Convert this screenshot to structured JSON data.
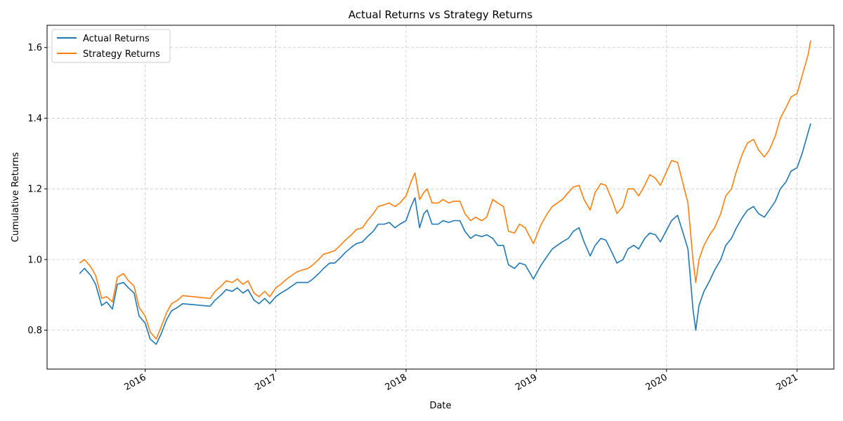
{
  "chart_data": {
    "type": "line",
    "title": "Actual Returns vs Strategy Returns",
    "xlabel": "Date",
    "ylabel": "Cumulative Returns",
    "xlim": [
      "2015-04-01",
      "2021-04-14"
    ],
    "ylim": [
      0.69,
      1.663
    ],
    "x_ticks": [
      {
        "date": "2016-01-01",
        "label": "2016"
      },
      {
        "date": "2017-01-01",
        "label": "2017"
      },
      {
        "date": "2018-01-01",
        "label": "2018"
      },
      {
        "date": "2019-01-01",
        "label": "2019"
      },
      {
        "date": "2020-01-01",
        "label": "2020"
      },
      {
        "date": "2021-01-01",
        "label": "2021"
      }
    ],
    "y_ticks": [
      {
        "value": 0.8,
        "label": "0.8"
      },
      {
        "value": 1.0,
        "label": "1.0"
      },
      {
        "value": 1.2,
        "label": "1.2"
      },
      {
        "value": 1.4,
        "label": "1.4"
      },
      {
        "value": 1.6,
        "label": "1.6"
      }
    ],
    "grid": true,
    "legend_position": "top-left",
    "series": [
      {
        "name": "Actual Returns",
        "color": "#1f77b4",
        "points": [
          [
            "2015-07-01",
            0.96
          ],
          [
            "2015-07-15",
            0.975
          ],
          [
            "2015-08-01",
            0.955
          ],
          [
            "2015-08-15",
            0.93
          ],
          [
            "2015-09-01",
            0.87
          ],
          [
            "2015-09-15",
            0.88
          ],
          [
            "2015-10-01",
            0.86
          ],
          [
            "2015-10-15",
            0.93
          ],
          [
            "2015-11-01",
            0.935
          ],
          [
            "2015-11-15",
            0.92
          ],
          [
            "2015-12-01",
            0.905
          ],
          [
            "2015-12-15",
            0.84
          ],
          [
            "2016-01-01",
            0.82
          ],
          [
            "2016-01-15",
            0.775
          ],
          [
            "2016-02-01",
            0.76
          ],
          [
            "2016-02-15",
            0.79
          ],
          [
            "2016-03-01",
            0.83
          ],
          [
            "2016-03-15",
            0.855
          ],
          [
            "2016-04-01",
            0.865
          ],
          [
            "2016-04-15",
            0.875
          ],
          [
            "2016-07-01",
            0.868
          ],
          [
            "2016-07-15",
            0.885
          ],
          [
            "2016-08-01",
            0.9
          ],
          [
            "2016-08-15",
            0.915
          ],
          [
            "2016-09-01",
            0.91
          ],
          [
            "2016-09-15",
            0.92
          ],
          [
            "2016-10-01",
            0.905
          ],
          [
            "2016-10-15",
            0.915
          ],
          [
            "2016-11-01",
            0.885
          ],
          [
            "2016-11-15",
            0.875
          ],
          [
            "2016-12-01",
            0.89
          ],
          [
            "2016-12-15",
            0.875
          ],
          [
            "2017-01-01",
            0.895
          ],
          [
            "2017-01-15",
            0.905
          ],
          [
            "2017-02-01",
            0.915
          ],
          [
            "2017-02-15",
            0.925
          ],
          [
            "2017-03-01",
            0.935
          ],
          [
            "2017-03-15",
            0.935
          ],
          [
            "2017-04-01",
            0.935
          ],
          [
            "2017-04-15",
            0.945
          ],
          [
            "2017-05-01",
            0.96
          ],
          [
            "2017-05-15",
            0.975
          ],
          [
            "2017-06-01",
            0.99
          ],
          [
            "2017-06-15",
            0.99
          ],
          [
            "2017-07-01",
            1.005
          ],
          [
            "2017-07-15",
            1.02
          ],
          [
            "2017-08-01",
            1.035
          ],
          [
            "2017-08-15",
            1.045
          ],
          [
            "2017-09-01",
            1.05
          ],
          [
            "2017-09-15",
            1.065
          ],
          [
            "2017-10-01",
            1.08
          ],
          [
            "2017-10-15",
            1.1
          ],
          [
            "2017-11-01",
            1.1
          ],
          [
            "2017-11-15",
            1.105
          ],
          [
            "2017-12-01",
            1.09
          ],
          [
            "2017-12-15",
            1.1
          ],
          [
            "2018-01-01",
            1.11
          ],
          [
            "2018-01-15",
            1.15
          ],
          [
            "2018-01-26",
            1.175
          ],
          [
            "2018-02-08",
            1.09
          ],
          [
            "2018-02-20",
            1.13
          ],
          [
            "2018-03-01",
            1.14
          ],
          [
            "2018-03-15",
            1.1
          ],
          [
            "2018-04-01",
            1.1
          ],
          [
            "2018-04-15",
            1.11
          ],
          [
            "2018-05-01",
            1.105
          ],
          [
            "2018-05-15",
            1.11
          ],
          [
            "2018-06-01",
            1.11
          ],
          [
            "2018-06-15",
            1.08
          ],
          [
            "2018-07-01",
            1.06
          ],
          [
            "2018-07-15",
            1.07
          ],
          [
            "2018-08-01",
            1.065
          ],
          [
            "2018-08-15",
            1.07
          ],
          [
            "2018-09-01",
            1.06
          ],
          [
            "2018-09-15",
            1.04
          ],
          [
            "2018-10-01",
            1.04
          ],
          [
            "2018-10-15",
            0.985
          ],
          [
            "2018-11-01",
            0.975
          ],
          [
            "2018-11-15",
            0.99
          ],
          [
            "2018-12-01",
            0.985
          ],
          [
            "2018-12-24",
            0.945
          ],
          [
            "2019-01-15",
            0.985
          ],
          [
            "2019-02-01",
            1.01
          ],
          [
            "2019-02-15",
            1.03
          ],
          [
            "2019-03-01",
            1.04
          ],
          [
            "2019-03-15",
            1.05
          ],
          [
            "2019-04-01",
            1.06
          ],
          [
            "2019-04-15",
            1.08
          ],
          [
            "2019-05-01",
            1.09
          ],
          [
            "2019-05-15",
            1.05
          ],
          [
            "2019-06-01",
            1.01
          ],
          [
            "2019-06-15",
            1.04
          ],
          [
            "2019-07-01",
            1.06
          ],
          [
            "2019-07-15",
            1.055
          ],
          [
            "2019-08-01",
            1.02
          ],
          [
            "2019-08-15",
            0.99
          ],
          [
            "2019-09-01",
            1.0
          ],
          [
            "2019-09-15",
            1.03
          ],
          [
            "2019-10-01",
            1.04
          ],
          [
            "2019-10-15",
            1.03
          ],
          [
            "2019-11-01",
            1.06
          ],
          [
            "2019-11-15",
            1.075
          ],
          [
            "2019-12-01",
            1.07
          ],
          [
            "2019-12-15",
            1.05
          ],
          [
            "2020-01-15",
            1.11
          ],
          [
            "2020-02-01",
            1.125
          ],
          [
            "2020-02-15",
            1.08
          ],
          [
            "2020-03-01",
            1.03
          ],
          [
            "2020-03-15",
            0.86
          ],
          [
            "2020-03-23",
            0.8
          ],
          [
            "2020-04-01",
            0.87
          ],
          [
            "2020-04-15",
            0.91
          ],
          [
            "2020-05-01",
            0.94
          ],
          [
            "2020-05-15",
            0.97
          ],
          [
            "2020-06-01",
            1.0
          ],
          [
            "2020-06-15",
            1.04
          ],
          [
            "2020-07-01",
            1.06
          ],
          [
            "2020-07-15",
            1.09
          ],
          [
            "2020-08-01",
            1.12
          ],
          [
            "2020-08-15",
            1.14
          ],
          [
            "2020-09-01",
            1.15
          ],
          [
            "2020-09-15",
            1.13
          ],
          [
            "2020-10-01",
            1.12
          ],
          [
            "2020-10-15",
            1.14
          ],
          [
            "2020-11-01",
            1.165
          ],
          [
            "2020-11-15",
            1.2
          ],
          [
            "2020-12-01",
            1.22
          ],
          [
            "2020-12-15",
            1.25
          ],
          [
            "2021-01-01",
            1.26
          ],
          [
            "2021-01-15",
            1.3
          ],
          [
            "2021-02-01",
            1.36
          ],
          [
            "2021-02-08",
            1.385
          ]
        ]
      },
      {
        "name": "Strategy Returns",
        "color": "#ff7f0e",
        "points": [
          [
            "2015-07-01",
            0.99
          ],
          [
            "2015-07-15",
            1.0
          ],
          [
            "2015-08-01",
            0.98
          ],
          [
            "2015-08-15",
            0.955
          ],
          [
            "2015-09-01",
            0.89
          ],
          [
            "2015-09-15",
            0.895
          ],
          [
            "2015-10-01",
            0.88
          ],
          [
            "2015-10-15",
            0.95
          ],
          [
            "2015-11-01",
            0.96
          ],
          [
            "2015-11-15",
            0.94
          ],
          [
            "2015-12-01",
            0.925
          ],
          [
            "2015-12-15",
            0.865
          ],
          [
            "2016-01-01",
            0.84
          ],
          [
            "2016-01-15",
            0.795
          ],
          [
            "2016-02-01",
            0.775
          ],
          [
            "2016-02-15",
            0.81
          ],
          [
            "2016-03-01",
            0.85
          ],
          [
            "2016-03-15",
            0.875
          ],
          [
            "2016-04-01",
            0.885
          ],
          [
            "2016-04-15",
            0.898
          ],
          [
            "2016-07-01",
            0.89
          ],
          [
            "2016-07-15",
            0.91
          ],
          [
            "2016-08-01",
            0.925
          ],
          [
            "2016-08-15",
            0.94
          ],
          [
            "2016-09-01",
            0.935
          ],
          [
            "2016-09-15",
            0.945
          ],
          [
            "2016-10-01",
            0.93
          ],
          [
            "2016-10-15",
            0.94
          ],
          [
            "2016-11-01",
            0.905
          ],
          [
            "2016-11-15",
            0.895
          ],
          [
            "2016-12-01",
            0.91
          ],
          [
            "2016-12-15",
            0.895
          ],
          [
            "2017-01-01",
            0.92
          ],
          [
            "2017-01-15",
            0.93
          ],
          [
            "2017-02-01",
            0.945
          ],
          [
            "2017-02-15",
            0.955
          ],
          [
            "2017-03-01",
            0.965
          ],
          [
            "2017-03-15",
            0.97
          ],
          [
            "2017-04-01",
            0.975
          ],
          [
            "2017-04-15",
            0.985
          ],
          [
            "2017-05-01",
            1.0
          ],
          [
            "2017-05-15",
            1.015
          ],
          [
            "2017-06-01",
            1.02
          ],
          [
            "2017-06-15",
            1.025
          ],
          [
            "2017-07-01",
            1.04
          ],
          [
            "2017-07-15",
            1.055
          ],
          [
            "2017-08-01",
            1.07
          ],
          [
            "2017-08-15",
            1.085
          ],
          [
            "2017-09-01",
            1.09
          ],
          [
            "2017-09-15",
            1.11
          ],
          [
            "2017-10-01",
            1.13
          ],
          [
            "2017-10-15",
            1.15
          ],
          [
            "2017-11-01",
            1.155
          ],
          [
            "2017-11-15",
            1.16
          ],
          [
            "2017-12-01",
            1.15
          ],
          [
            "2017-12-15",
            1.16
          ],
          [
            "2018-01-01",
            1.18
          ],
          [
            "2018-01-15",
            1.22
          ],
          [
            "2018-01-26",
            1.245
          ],
          [
            "2018-02-08",
            1.17
          ],
          [
            "2018-02-20",
            1.19
          ],
          [
            "2018-03-01",
            1.2
          ],
          [
            "2018-03-15",
            1.16
          ],
          [
            "2018-04-01",
            1.16
          ],
          [
            "2018-04-15",
            1.17
          ],
          [
            "2018-05-01",
            1.16
          ],
          [
            "2018-05-15",
            1.165
          ],
          [
            "2018-06-01",
            1.165
          ],
          [
            "2018-06-15",
            1.13
          ],
          [
            "2018-07-01",
            1.11
          ],
          [
            "2018-07-15",
            1.12
          ],
          [
            "2018-08-01",
            1.11
          ],
          [
            "2018-08-15",
            1.12
          ],
          [
            "2018-09-01",
            1.17
          ],
          [
            "2018-09-15",
            1.16
          ],
          [
            "2018-10-01",
            1.15
          ],
          [
            "2018-10-15",
            1.08
          ],
          [
            "2018-11-01",
            1.075
          ],
          [
            "2018-11-15",
            1.1
          ],
          [
            "2018-12-01",
            1.09
          ],
          [
            "2018-12-24",
            1.045
          ],
          [
            "2019-01-15",
            1.1
          ],
          [
            "2019-02-01",
            1.13
          ],
          [
            "2019-02-15",
            1.15
          ],
          [
            "2019-03-01",
            1.16
          ],
          [
            "2019-03-15",
            1.17
          ],
          [
            "2019-04-01",
            1.19
          ],
          [
            "2019-04-15",
            1.205
          ],
          [
            "2019-05-01",
            1.21
          ],
          [
            "2019-05-15",
            1.17
          ],
          [
            "2019-06-01",
            1.14
          ],
          [
            "2019-06-15",
            1.19
          ],
          [
            "2019-07-01",
            1.215
          ],
          [
            "2019-07-15",
            1.21
          ],
          [
            "2019-08-01",
            1.17
          ],
          [
            "2019-08-15",
            1.13
          ],
          [
            "2019-09-01",
            1.15
          ],
          [
            "2019-09-15",
            1.2
          ],
          [
            "2019-10-01",
            1.2
          ],
          [
            "2019-10-15",
            1.18
          ],
          [
            "2019-11-01",
            1.21
          ],
          [
            "2019-11-15",
            1.24
          ],
          [
            "2019-12-01",
            1.23
          ],
          [
            "2019-12-15",
            1.21
          ],
          [
            "2020-01-15",
            1.28
          ],
          [
            "2020-02-01",
            1.275
          ],
          [
            "2020-02-15",
            1.22
          ],
          [
            "2020-03-01",
            1.16
          ],
          [
            "2020-03-15",
            1.0
          ],
          [
            "2020-03-23",
            0.935
          ],
          [
            "2020-04-01",
            1.0
          ],
          [
            "2020-04-15",
            1.04
          ],
          [
            "2020-05-01",
            1.07
          ],
          [
            "2020-05-15",
            1.09
          ],
          [
            "2020-06-01",
            1.13
          ],
          [
            "2020-06-15",
            1.18
          ],
          [
            "2020-07-01",
            1.2
          ],
          [
            "2020-07-15",
            1.25
          ],
          [
            "2020-08-01",
            1.3
          ],
          [
            "2020-08-15",
            1.33
          ],
          [
            "2020-09-01",
            1.34
          ],
          [
            "2020-09-15",
            1.31
          ],
          [
            "2020-10-01",
            1.29
          ],
          [
            "2020-10-15",
            1.31
          ],
          [
            "2020-11-01",
            1.35
          ],
          [
            "2020-11-15",
            1.4
          ],
          [
            "2020-12-01",
            1.43
          ],
          [
            "2020-12-15",
            1.46
          ],
          [
            "2021-01-01",
            1.47
          ],
          [
            "2021-01-15",
            1.52
          ],
          [
            "2021-02-01",
            1.58
          ],
          [
            "2021-02-08",
            1.62
          ]
        ]
      }
    ]
  }
}
